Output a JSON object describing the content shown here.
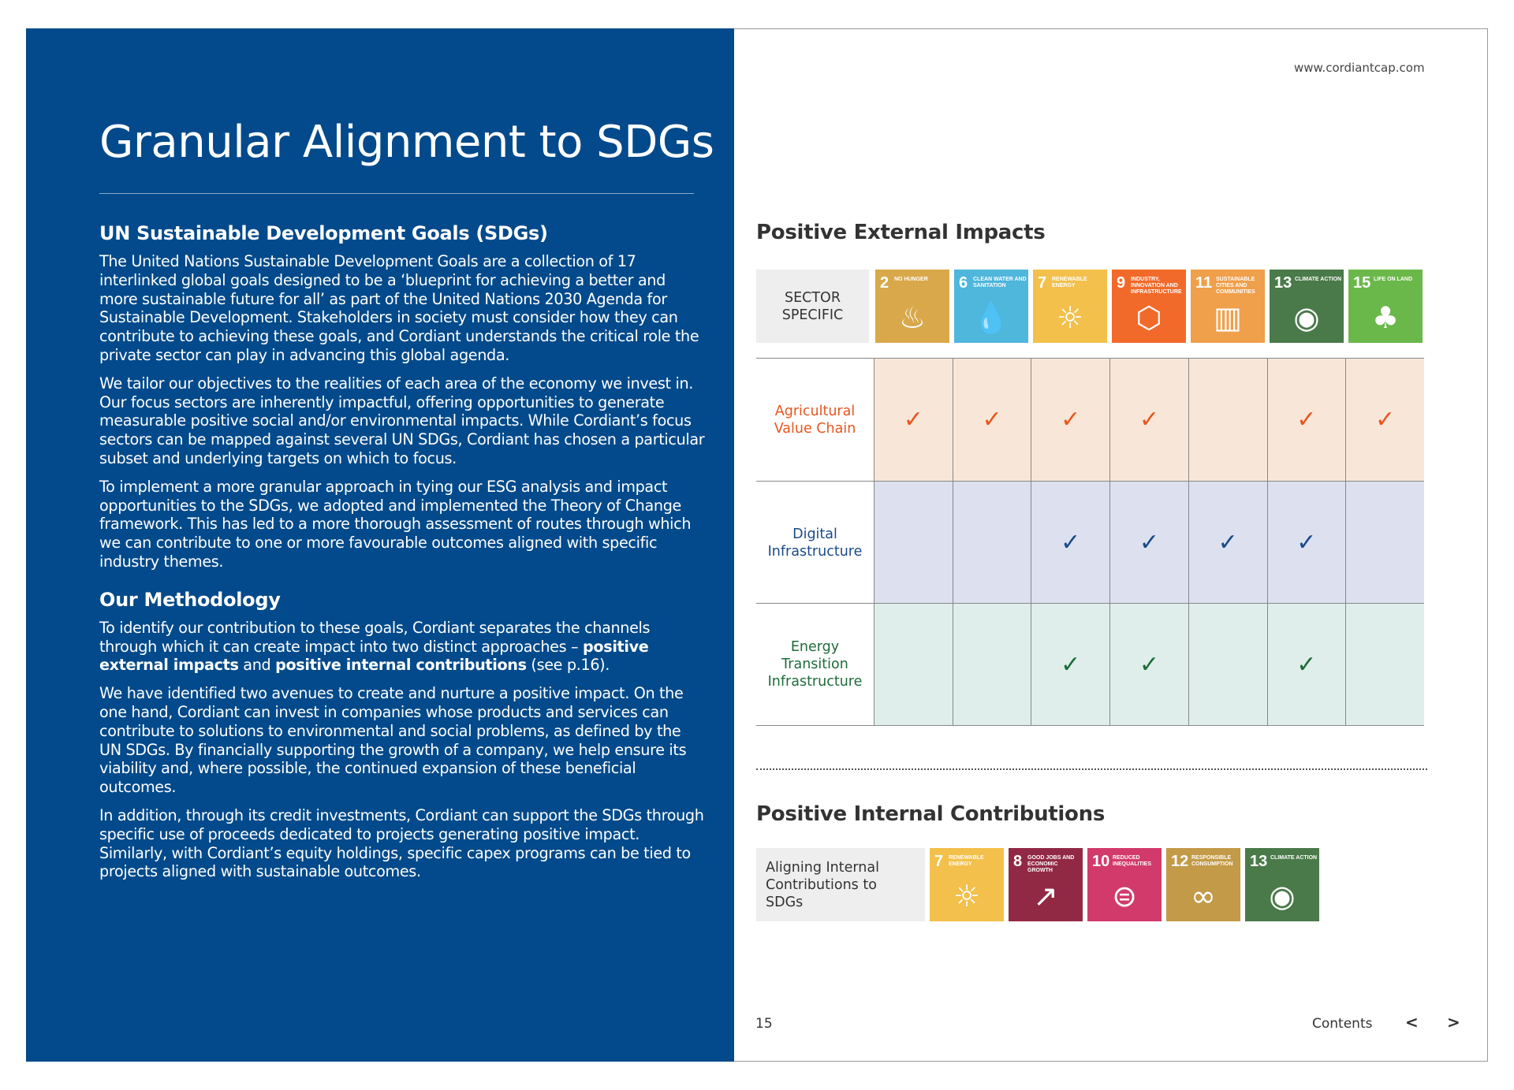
{
  "left": {
    "title": "Granular Alignment to SDGs",
    "section1_heading": "UN Sustainable Development Goals (SDGs)",
    "p1": "The United Nations Sustainable Development Goals are a collection of 17 interlinked global goals designed to be a ‘blueprint for achieving a better and more sustainable future for all’ as part of the United Nations 2030 Agenda for Sustainable Development. Stakeholders in society must consider how they can contribute to achieving these goals, and Cordiant understands the critical role the private sector can play in advancing this global agenda.",
    "p2": "We tailor our objectives to the realities of each area of the economy we invest in. Our focus sectors are inherently impactful, offering opportunities to generate measurable positive social and/or environmental impacts. While Cordiant’s focus sectors can be mapped against several UN SDGs, Cordiant has chosen a particular subset and underlying targets on which to focus.",
    "p3": "To implement a more granular approach in tying our ESG analysis and impact opportunities to the SDGs, we adopted and implemented the Theory of Change framework. This has led to a more thorough assessment of routes through which we can contribute to one or more favourable outcomes aligned with specific industry themes.",
    "section2_heading": "Our Methodology",
    "p4_a": "To identify our contribution to these goals, Cordiant separates the channels through which it can create impact into two distinct approaches – ",
    "p4_b": "positive external impacts",
    "p4_c": " and ",
    "p4_d": "positive internal contributions",
    "p4_e": " (see p.16).",
    "p5": "We have identified two avenues to create and nurture a positive impact. On the one hand, Cordiant can invest in companies whose products and services can contribute to solutions to environmental and social problems, as defined by the UN SDGs. By financially supporting the growth of a company, we help ensure its viability and, where possible, the continued expansion of these beneficial outcomes.",
    "p6": "In addition, through its  credit investments, Cordiant can support the SDGs through specific use of proceeds dedicated to projects generating positive impact. Similarly, with Cordiant’s equity holdings, specific capex programs can be tied to projects aligned with sustainable outcomes."
  },
  "right": {
    "url": "www.cordiantcap.com",
    "external_heading": "Positive External Impacts",
    "sector_label": "SECTOR SPECIFIC",
    "external_sdgs": [
      {
        "num": "2",
        "label": "No hunger",
        "color": "#d9a84a",
        "icon": "bowl-icon"
      },
      {
        "num": "6",
        "label": "Clean water and sanitation",
        "color": "#4fb6dc",
        "icon": "water-icon"
      },
      {
        "num": "7",
        "label": "Renewable energy",
        "color": "#f2c04b",
        "icon": "sun-power-icon"
      },
      {
        "num": "9",
        "label": "Industry, innovation and infrastructure",
        "color": "#f26a2a",
        "icon": "cubes-icon"
      },
      {
        "num": "11",
        "label": "Sustainable cities and communities",
        "color": "#f09f4a",
        "icon": "city-icon"
      },
      {
        "num": "13",
        "label": "Climate action",
        "color": "#4a7a4a",
        "icon": "eye-globe-icon"
      },
      {
        "num": "15",
        "label": "Life on land",
        "color": "#6bb84a",
        "icon": "tree-icon"
      }
    ],
    "rows": [
      {
        "name": "Agricultural Value Chain",
        "bg": "#f8e7d9",
        "color": "#e8561e",
        "checks": [
          true,
          true,
          true,
          true,
          false,
          true,
          true
        ]
      },
      {
        "name": "Digital Infrastructure",
        "bg": "#dde0ef",
        "color": "#1a4a8a",
        "checks": [
          false,
          false,
          true,
          true,
          true,
          true,
          false
        ]
      },
      {
        "name": "Energy Transition Infrastructure",
        "bg": "#dfeeea",
        "color": "#1e6b3a",
        "checks": [
          false,
          false,
          true,
          true,
          false,
          true,
          false
        ]
      }
    ],
    "check_mark": "✓",
    "internal_heading": "Positive Internal Contributions",
    "internal_label": "Aligning Internal Contributions to SDGs",
    "internal_sdgs": [
      {
        "num": "7",
        "label": "Renewable energy",
        "color": "#f2c04b",
        "icon": "sun-power-icon"
      },
      {
        "num": "8",
        "label": "Good jobs and economic growth",
        "color": "#922944",
        "icon": "growth-chart-icon"
      },
      {
        "num": "10",
        "label": "Reduced inequalities",
        "color": "#d23a6c",
        "icon": "equal-circle-icon"
      },
      {
        "num": "12",
        "label": "Responsible consumption",
        "color": "#c39a48",
        "icon": "infinity-icon"
      },
      {
        "num": "13",
        "label": "Climate action",
        "color": "#4a7a4a",
        "icon": "eye-globe-icon"
      }
    ]
  },
  "footer": {
    "page": "15",
    "contents": "Contents",
    "prev": "<",
    "next": ">"
  }
}
